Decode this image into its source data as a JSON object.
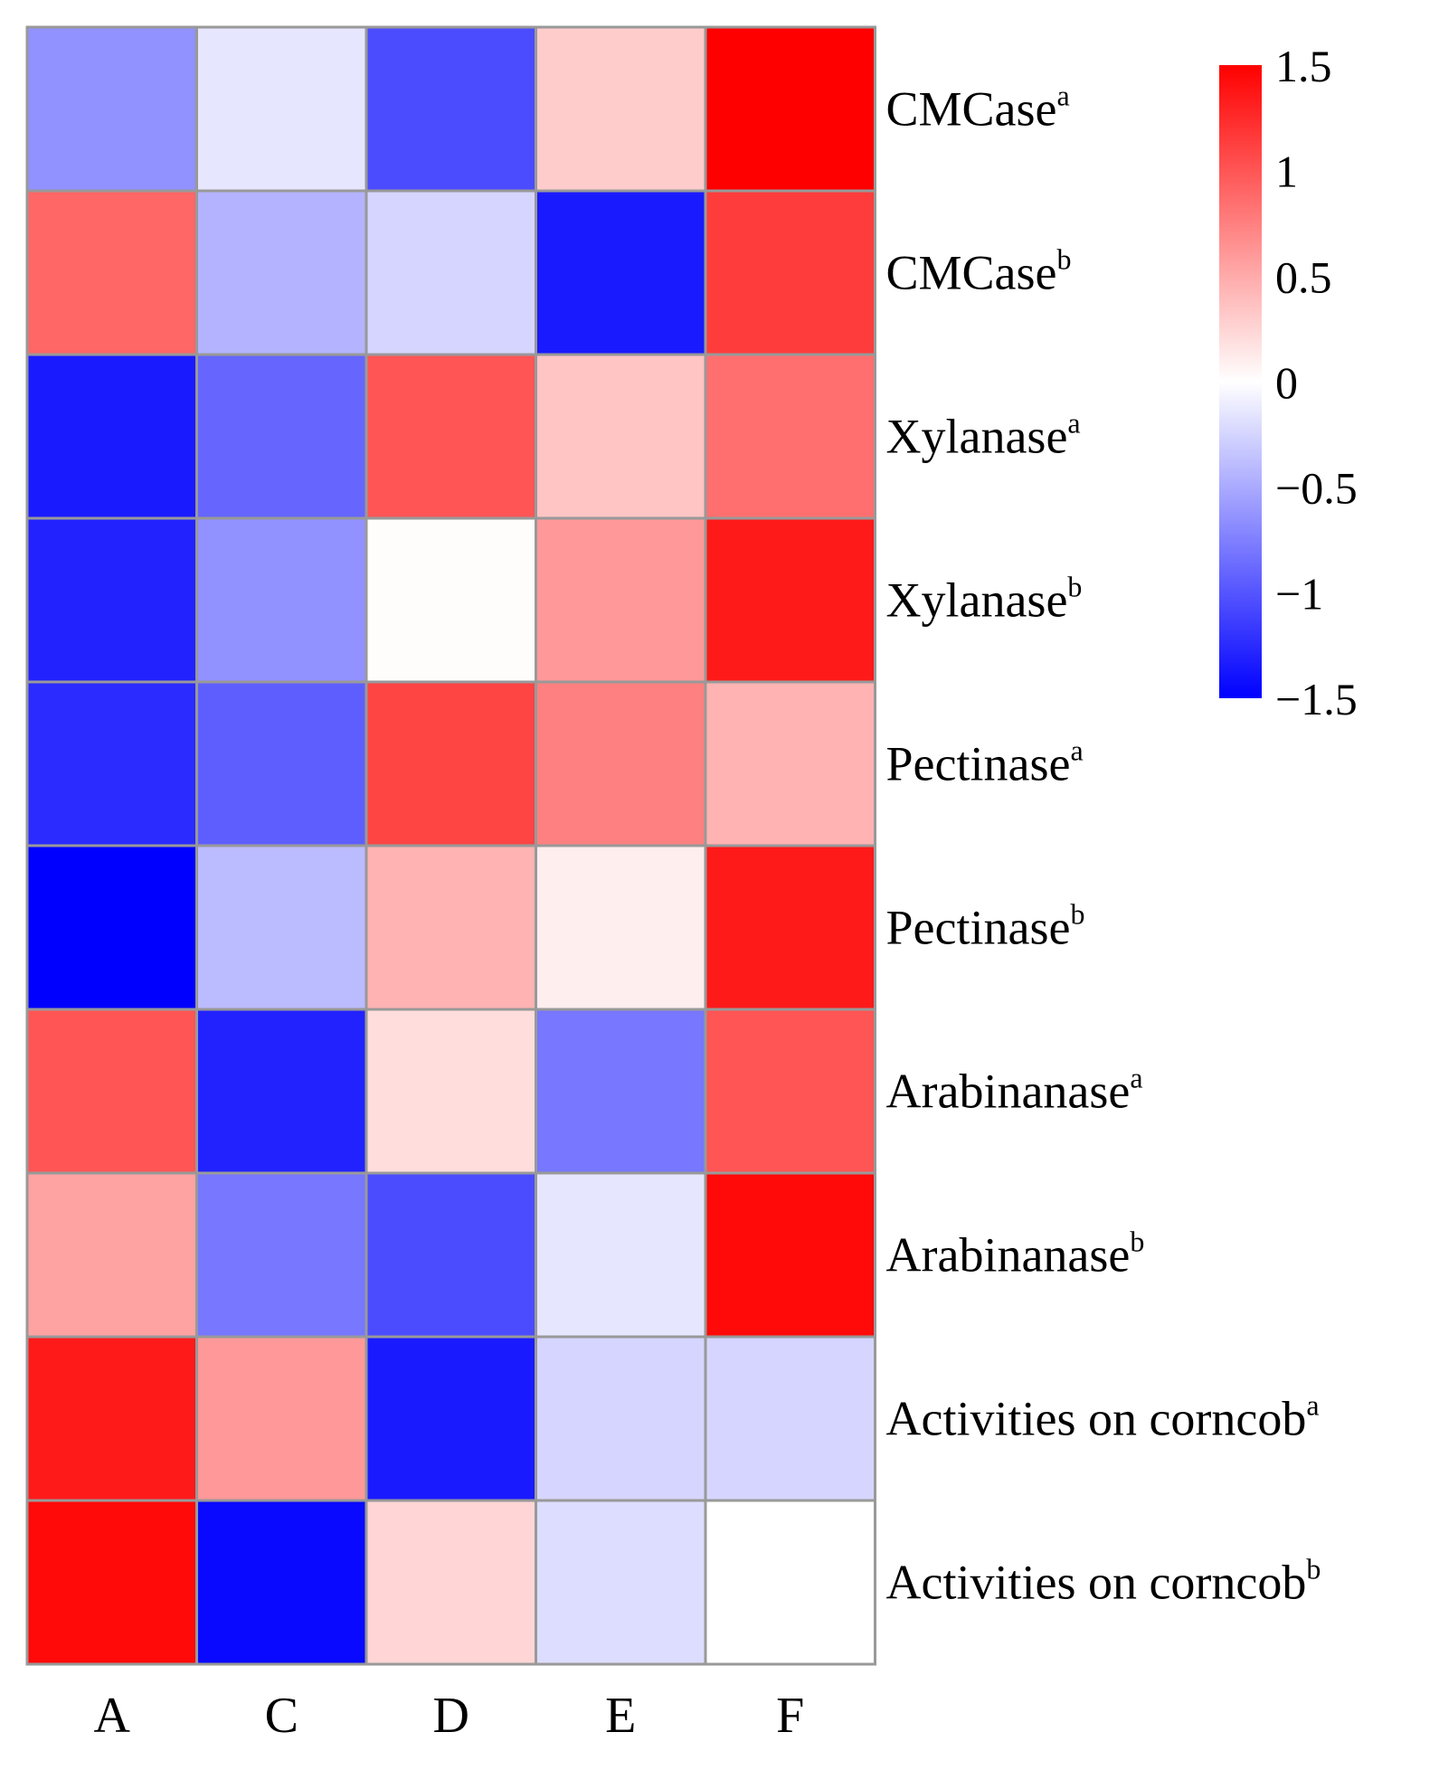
{
  "chart_data": {
    "type": "heatmap",
    "title": "",
    "xlabel": "",
    "ylabel": "",
    "columns": [
      "A",
      "C",
      "D",
      "E",
      "F"
    ],
    "rows": [
      {
        "label": "CMCase",
        "sup": "a"
      },
      {
        "label": "CMCase",
        "sup": "b"
      },
      {
        "label": "Xylanase",
        "sup": "a"
      },
      {
        "label": "Xylanase",
        "sup": "b"
      },
      {
        "label": "Pectinase",
        "sup": "a"
      },
      {
        "label": "Pectinase",
        "sup": "b"
      },
      {
        "label": "Arabinanase",
        "sup": "a"
      },
      {
        "label": "Arabinanase",
        "sup": "b"
      },
      {
        "label": "Activities on corncob",
        "sup": "a"
      },
      {
        "label": "Activities on corncob",
        "sup": "b"
      }
    ],
    "values": [
      [
        -0.65,
        -0.15,
        -1.05,
        0.3,
        1.55
      ],
      [
        0.9,
        -0.45,
        -0.25,
        -1.35,
        1.15
      ],
      [
        -1.35,
        -0.9,
        1.0,
        0.35,
        0.85
      ],
      [
        -1.3,
        -0.65,
        0.02,
        0.6,
        1.35
      ],
      [
        -1.25,
        -0.95,
        1.1,
        0.75,
        0.45
      ],
      [
        -1.5,
        -0.4,
        0.45,
        0.1,
        1.35
      ],
      [
        1.0,
        -1.3,
        0.2,
        -0.8,
        1.0
      ],
      [
        0.55,
        -0.8,
        -1.05,
        -0.15,
        1.45
      ],
      [
        1.35,
        0.6,
        -1.35,
        -0.25,
        -0.25
      ],
      [
        1.45,
        -1.45,
        0.25,
        -0.2,
        0.0
      ]
    ],
    "colorbar": {
      "min": -1.5,
      "max": 1.5,
      "low_color": "#0000FF",
      "mid_color": "#FFFFFF",
      "high_color": "#FF0000",
      "ticks": [
        1.5,
        1,
        0.5,
        0,
        -0.5,
        -1,
        -1.5
      ],
      "tick_labels": [
        "1.5",
        "1",
        "0.5",
        "0",
        "−0.5",
        "−1",
        "−1.5"
      ]
    },
    "grid_color": "#999999"
  }
}
